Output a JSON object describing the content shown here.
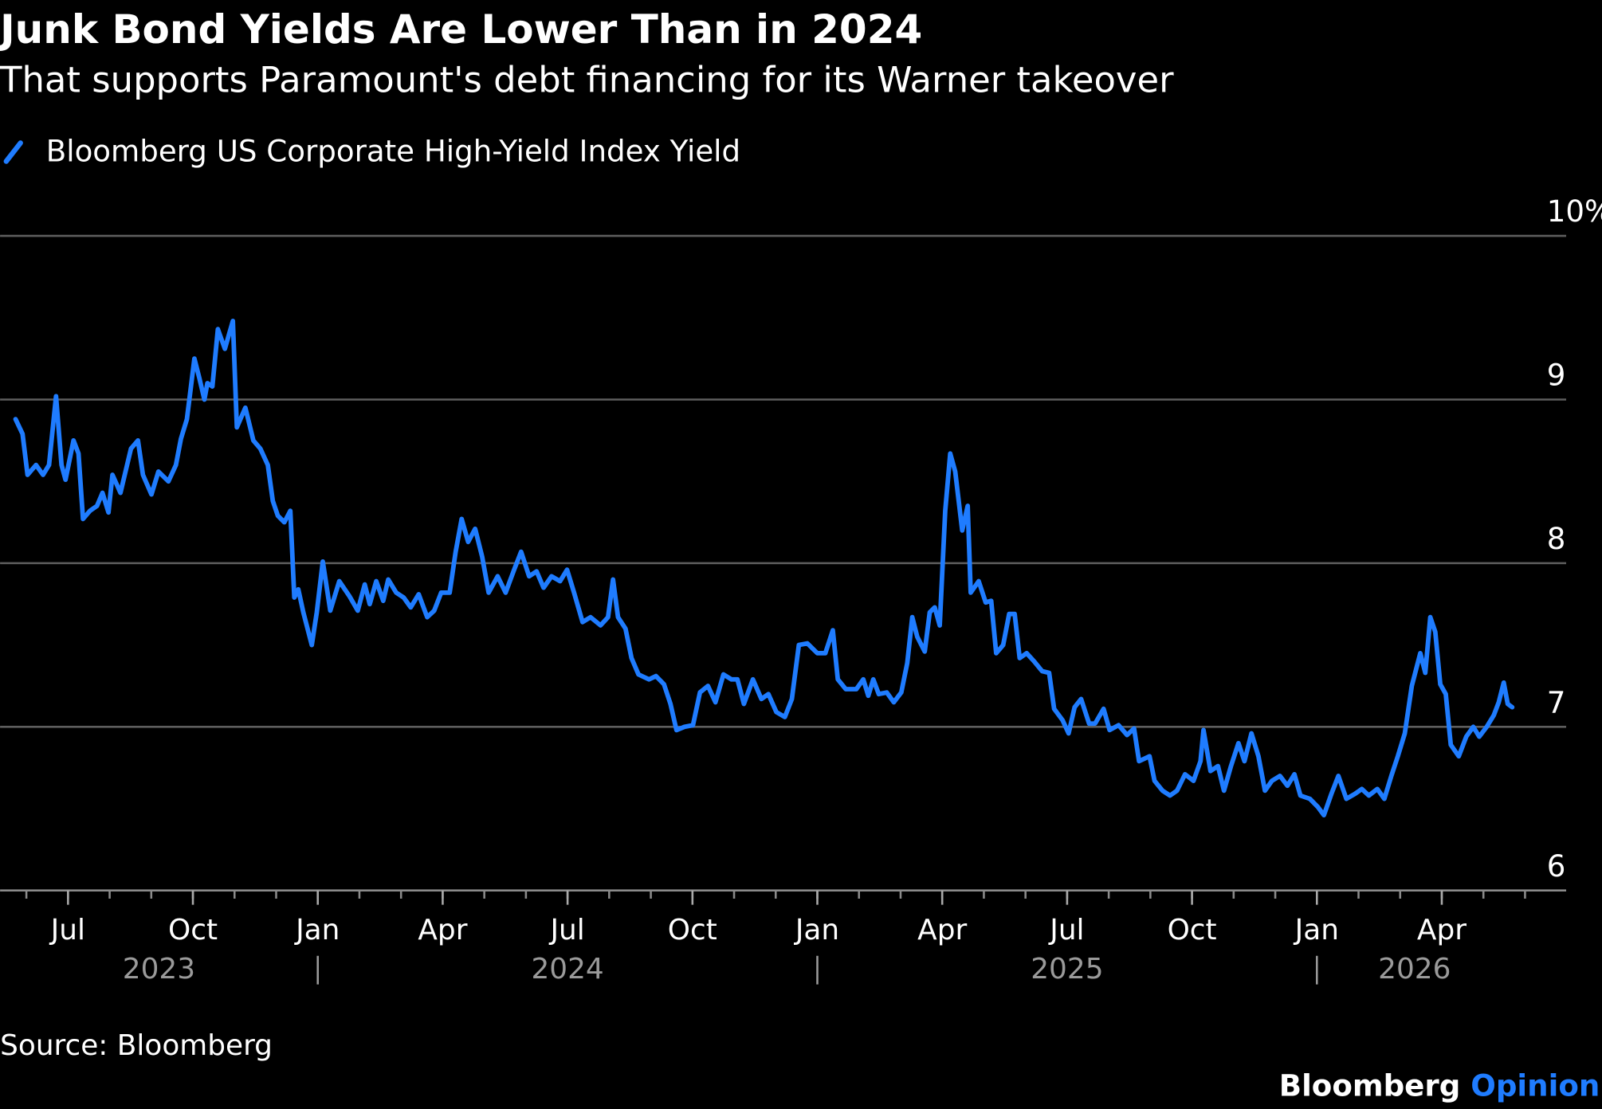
{
  "chart_data": {
    "type": "line",
    "title": "Junk Bond Yields Are Lower Than in 2024",
    "subtitle": "That supports Paramount's debt financing for its Warner takeover",
    "source": "Source: Bloomberg",
    "brand": "Bloomberg",
    "brand_suffix": "Opinion",
    "x": [
      2023.395,
      2023.409,
      2023.419,
      2023.436,
      2023.45,
      2023.462,
      2023.476,
      2023.487,
      2023.495,
      2023.511,
      2023.521,
      2023.53,
      2023.544,
      2023.558,
      2023.569,
      2023.581,
      2023.589,
      2023.605,
      2023.626,
      2023.64,
      2023.65,
      2023.667,
      2023.681,
      2023.701,
      2023.716,
      2023.726,
      2023.738,
      2023.753,
      2023.763,
      2023.773,
      2023.779,
      2023.789,
      2023.8,
      2023.814,
      2023.83,
      2023.838,
      2023.855,
      2023.871,
      2023.885,
      2023.9,
      2023.91,
      2023.92,
      2023.933,
      2023.945,
      2023.953,
      2023.961,
      2023.971,
      2023.988,
      2023.998,
      2024.01,
      2024.025,
      2024.043,
      2024.063,
      2024.08,
      2024.094,
      2024.104,
      2024.117,
      2024.131,
      2024.141,
      2024.157,
      2024.172,
      2024.186,
      2024.202,
      2024.219,
      2024.233,
      2024.247,
      2024.264,
      2024.276,
      2024.288,
      2024.301,
      2024.315,
      2024.329,
      2024.342,
      2024.36,
      2024.376,
      2024.393,
      2024.407,
      2024.423,
      2024.438,
      2024.452,
      2024.468,
      2024.485,
      2024.499,
      2024.513,
      2024.53,
      2024.546,
      2024.566,
      2024.581,
      2024.591,
      2024.601,
      2024.616,
      2024.628,
      2024.642,
      2024.663,
      2024.677,
      2024.693,
      2024.706,
      2024.718,
      2024.734,
      2024.751,
      2024.765,
      2024.781,
      2024.796,
      2024.812,
      2024.828,
      2024.84,
      2024.853,
      2024.871,
      2024.888,
      2024.902,
      2024.918,
      2024.935,
      2024.949,
      2024.963,
      2024.98,
      2025.0,
      2025.016,
      2025.031,
      2025.041,
      2025.057,
      2025.078,
      2025.092,
      2025.102,
      2025.112,
      2025.123,
      2025.139,
      2025.153,
      2025.168,
      2025.18,
      2025.19,
      2025.2,
      2025.215,
      2025.225,
      2025.235,
      2025.245,
      2025.256,
      2025.266,
      2025.276,
      2025.29,
      2025.301,
      2025.307,
      2025.323,
      2025.337,
      2025.348,
      2025.358,
      2025.372,
      2025.384,
      2025.395,
      2025.405,
      2025.419,
      2025.434,
      2025.45,
      2025.464,
      2025.474,
      2025.491,
      2025.503,
      2025.515,
      2025.528,
      2025.544,
      2025.556,
      2025.573,
      2025.585,
      2025.603,
      2025.62,
      2025.634,
      2025.644,
      2025.665,
      2025.675,
      2025.691,
      2025.706,
      2025.72,
      2025.736,
      2025.753,
      2025.767,
      2025.773,
      2025.787,
      2025.802,
      2025.814,
      2025.828,
      2025.843,
      2025.855,
      2025.869,
      2025.883,
      2025.896,
      2025.91,
      2025.926,
      2025.941,
      2025.955,
      2025.967,
      2025.986,
      2026.002,
      2026.014,
      2026.029,
      2026.043,
      2026.059,
      2026.076,
      2026.09,
      2026.104,
      2026.121,
      2026.135,
      2026.149,
      2026.162,
      2026.176,
      2026.19,
      2026.207,
      2026.217,
      2026.227,
      2026.237,
      2026.247,
      2026.258,
      2026.268,
      2026.284,
      2026.299,
      2026.313,
      2026.325,
      2026.34,
      2026.354,
      2026.364,
      2026.374,
      2026.382,
      2026.391
    ],
    "series": [
      {
        "name": "Bloomberg US Corporate High-Yield Index Yield",
        "color": "#1f7cff",
        "values": [
          8.88,
          8.79,
          8.54,
          8.6,
          8.54,
          8.6,
          9.02,
          8.6,
          8.51,
          8.75,
          8.67,
          8.27,
          8.32,
          8.35,
          8.43,
          8.31,
          8.54,
          8.43,
          8.7,
          8.75,
          8.54,
          8.42,
          8.56,
          8.5,
          8.6,
          8.76,
          8.88,
          9.25,
          9.13,
          9.0,
          9.1,
          9.08,
          9.43,
          9.31,
          9.48,
          8.83,
          8.95,
          8.75,
          8.7,
          8.6,
          8.38,
          8.29,
          8.25,
          8.32,
          7.79,
          7.84,
          7.7,
          7.5,
          7.7,
          8.01,
          7.71,
          7.89,
          7.8,
          7.71,
          7.87,
          7.75,
          7.89,
          7.77,
          7.9,
          7.82,
          7.79,
          7.73,
          7.81,
          7.67,
          7.71,
          7.82,
          7.82,
          8.07,
          8.27,
          8.13,
          8.21,
          8.04,
          7.82,
          7.92,
          7.82,
          7.96,
          8.07,
          7.92,
          7.95,
          7.85,
          7.92,
          7.89,
          7.96,
          7.82,
          7.64,
          7.67,
          7.62,
          7.67,
          7.9,
          7.67,
          7.6,
          7.42,
          7.32,
          7.29,
          7.31,
          7.26,
          7.14,
          6.98,
          7.0,
          7.01,
          7.21,
          7.25,
          7.15,
          7.32,
          7.29,
          7.29,
          7.14,
          7.29,
          7.17,
          7.2,
          7.09,
          7.06,
          7.17,
          7.5,
          7.51,
          7.45,
          7.45,
          7.59,
          7.29,
          7.23,
          7.23,
          7.29,
          7.19,
          7.29,
          7.2,
          7.21,
          7.15,
          7.21,
          7.39,
          7.67,
          7.55,
          7.46,
          7.7,
          7.73,
          7.62,
          8.32,
          8.67,
          8.56,
          8.2,
          8.35,
          7.82,
          7.89,
          7.76,
          7.77,
          7.45,
          7.5,
          7.69,
          7.69,
          7.42,
          7.45,
          7.4,
          7.34,
          7.33,
          7.11,
          7.04,
          6.96,
          7.12,
          7.17,
          7.02,
          7.02,
          7.11,
          6.98,
          7.01,
          6.95,
          6.99,
          6.79,
          6.82,
          6.67,
          6.61,
          6.58,
          6.61,
          6.71,
          6.67,
          6.79,
          6.98,
          6.73,
          6.76,
          6.61,
          6.76,
          6.9,
          6.79,
          6.96,
          6.82,
          6.61,
          6.67,
          6.7,
          6.64,
          6.71,
          6.58,
          6.56,
          6.51,
          6.46,
          6.59,
          6.7,
          6.56,
          6.59,
          6.62,
          6.58,
          6.62,
          6.56,
          6.7,
          6.82,
          6.96,
          7.25,
          7.45,
          7.33,
          7.67,
          7.58,
          7.26,
          7.2,
          6.89,
          6.82,
          6.94,
          7.0,
          6.94,
          7.0,
          7.07,
          7.15,
          7.27,
          7.14,
          7.12
        ]
      }
    ],
    "xlim": [
      2023.364,
      2026.499
    ],
    "xticks": [
      {
        "value": 2023.5,
        "label": "Jul"
      },
      {
        "value": 2023.75,
        "label": "Oct"
      },
      {
        "value": 2024,
        "label": "Jan"
      },
      {
        "value": 2024.25,
        "label": "Apr"
      },
      {
        "value": 2024.5,
        "label": "Jul"
      },
      {
        "value": 2024.75,
        "label": "Oct"
      },
      {
        "value": 2025,
        "label": "Jan"
      },
      {
        "value": 2025.25,
        "label": "Apr"
      },
      {
        "value": 2025.5,
        "label": "Jul"
      },
      {
        "value": 2025.75,
        "label": "Oct"
      },
      {
        "value": 2026,
        "label": "Jan"
      },
      {
        "value": 2026.25,
        "label": "Apr"
      }
    ],
    "x_years": [
      2023,
      2024,
      2025,
      2026
    ],
    "ylim": [
      6,
      10
    ],
    "yticks": [
      6,
      7,
      8,
      9,
      {
        "value": 10,
        "label": "10%"
      }
    ],
    "grid": true
  }
}
